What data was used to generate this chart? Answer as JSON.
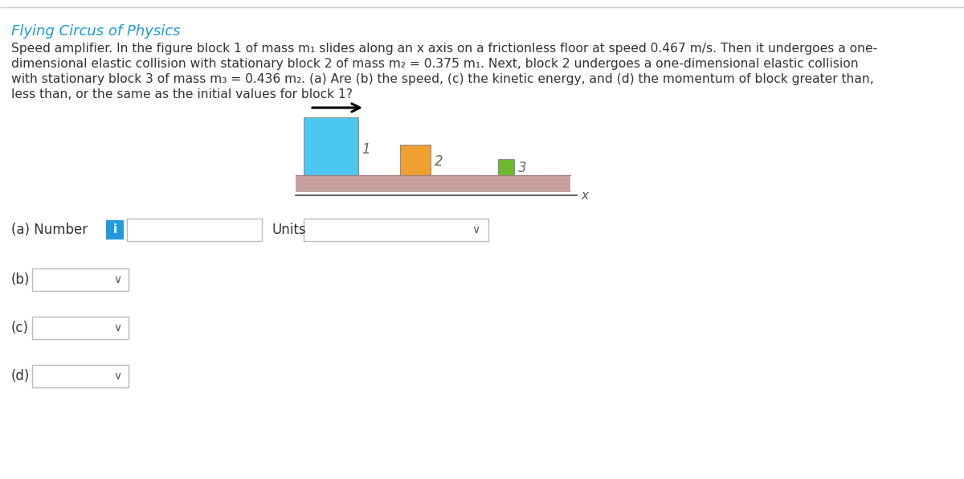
{
  "title": "Flying Circus of Physics",
  "title_color": "#1a9cd8",
  "bg_color": "#ffffff",
  "block1_color": "#4cc8f0",
  "block2_color": "#f0a030",
  "block3_color": "#70b830",
  "floor_color": "#c8a0a0",
  "floor_edge_color": "#a08080",
  "label_a": "(a) Number",
  "label_b": "(b)",
  "label_c": "(c)",
  "label_d": "(d)",
  "units_label": "Units",
  "info_icon_color": "#2299dd",
  "divider_color": "#cccccc",
  "text_color": "#333333",
  "dropdown_border": "#bbbbbb",
  "paragraph_lines": [
    "Speed amplifier. In the figure block 1 of mass m₁ slides along an x axis on a frictionless floor at speed 0.467 m/s. Then it undergoes a one-",
    "dimensional elastic collision with stationary block 2 of mass m₂ = 0.375 m₁. Next, block 2 undergoes a one-dimensional elastic collision",
    "with stationary block 3 of mass m₃ = 0.436 m₂. (a) Are (b) the speed, (c) the kinetic energy, and (d) the momentum of block greater than,",
    "less than, or the same as the initial values for block 1?"
  ],
  "bold_italic_words": [
    "Speed amplifier.",
    "(a)",
    "(b)",
    "(c)",
    "(d)"
  ]
}
